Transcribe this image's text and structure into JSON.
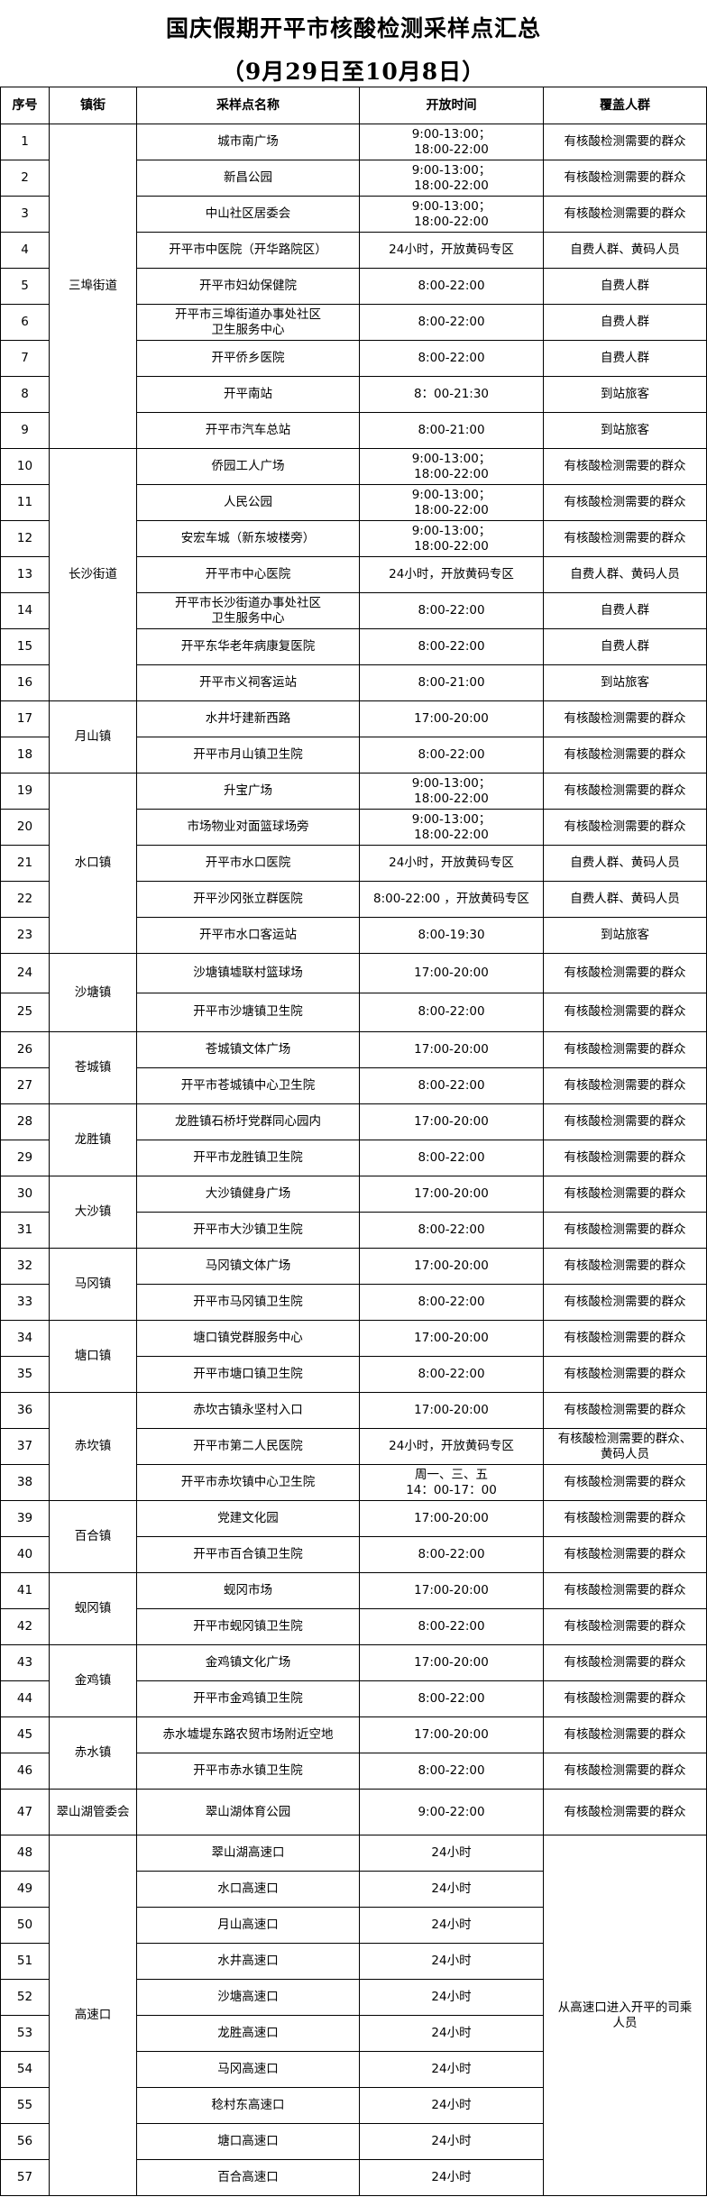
{
  "title": "国庆假期开平市核酸检测采样点汇总",
  "subtitle": "（9月29日至10月8日）",
  "headers": [
    "序号",
    "镇街",
    "采样点名称",
    "开放时间",
    "覆盖人群"
  ],
  "groups": [
    {
      "town": "三埠街道",
      "sites": [
        {
          "no": "1",
          "name": "城市南广场",
          "time": "9:00-13:00；\n18:00-22:00",
          "coverage": "有核酸检测需要的群众"
        },
        {
          "no": "2",
          "name": "新昌公园",
          "time": "9:00-13:00；\n18:00-22:00",
          "coverage": "有核酸检测需要的群众"
        },
        {
          "no": "3",
          "name": "中山社区居委会",
          "time": "9:00-13:00；\n18:00-22:00",
          "coverage": "有核酸检测需要的群众"
        },
        {
          "no": "4",
          "name": "开平市中医院（开华路院区）",
          "time": "24小时，开放黄码专区",
          "coverage": "自费人群、黄码人员"
        },
        {
          "no": "5",
          "name": "开平市妇幼保健院",
          "time": "8:00-22:00",
          "coverage": "自费人群"
        },
        {
          "no": "6",
          "name": "开平市三埠街道办事处社区\n卫生服务中心",
          "time": "8:00-22:00",
          "coverage": "自费人群"
        },
        {
          "no": "7",
          "name": "开平侨乡医院",
          "time": "8:00-22:00",
          "coverage": "自费人群"
        },
        {
          "no": "8",
          "name": "开平南站",
          "time": "8：00-21:30",
          "coverage": "到站旅客"
        },
        {
          "no": "9",
          "name": "开平市汽车总站",
          "time": "8:00-21:00",
          "coverage": "到站旅客"
        }
      ]
    },
    {
      "town": "长沙街道",
      "sites": [
        {
          "no": "10",
          "name": "侨园工人广场",
          "time": "9:00-13:00；\n18:00-22:00",
          "coverage": "有核酸检测需要的群众"
        },
        {
          "no": "11",
          "name": "人民公园",
          "time": "9:00-13:00；\n18:00-22:00",
          "coverage": "有核酸检测需要的群众"
        },
        {
          "no": "12",
          "name": "安宏车城（新东坡楼旁）",
          "time": "9:00-13:00；\n18:00-22:00",
          "coverage": "有核酸检测需要的群众"
        },
        {
          "no": "13",
          "name": "开平市中心医院",
          "time": "24小时，开放黄码专区",
          "coverage": "自费人群、黄码人员"
        },
        {
          "no": "14",
          "name": "开平市长沙街道办事处社区\n卫生服务中心",
          "time": "8:00-22:00",
          "coverage": "自费人群"
        },
        {
          "no": "15",
          "name": "开平东华老年病康复医院",
          "time": "8:00-22:00",
          "coverage": "自费人群"
        },
        {
          "no": "16",
          "name": "开平市义祠客运站",
          "time": "8:00-21:00",
          "coverage": "到站旅客"
        }
      ]
    },
    {
      "town": "月山镇",
      "sites": [
        {
          "no": "17",
          "name": "水井圩建新西路",
          "time": "17:00-20:00",
          "coverage": "有核酸检测需要的群众"
        },
        {
          "no": "18",
          "name": "开平市月山镇卫生院",
          "time": "8:00-22:00",
          "coverage": "有核酸检测需要的群众"
        }
      ]
    },
    {
      "town": "水口镇",
      "sites": [
        {
          "no": "19",
          "name": "升宝广场",
          "time": "9:00-13:00；\n18:00-22:00",
          "coverage": "有核酸检测需要的群众"
        },
        {
          "no": "20",
          "name": "市场物业对面篮球场旁",
          "time": "9:00-13:00；\n18:00-22:00",
          "coverage": "有核酸检测需要的群众"
        },
        {
          "no": "21",
          "name": "开平市水口医院",
          "time": "24小时，开放黄码专区",
          "coverage": "自费人群、黄码人员"
        },
        {
          "no": "22",
          "name": "开平沙冈张立群医院",
          "time": "8:00-22:00 ，开放黄码专区",
          "coverage": "自费人群、黄码人员"
        },
        {
          "no": "23",
          "name": "开平市水口客运站",
          "time": "8:00-19:30",
          "coverage": "到站旅客"
        }
      ]
    },
    {
      "town": "沙塘镇",
      "sites": [
        {
          "no": "24",
          "name": "沙塘镇墟联村篮球场",
          "time": "17:00-20:00",
          "coverage": "有核酸检测需要的群众"
        },
        {
          "no": "25",
          "name": "开平市沙塘镇卫生院",
          "time": "8:00-22:00",
          "coverage": "有核酸检测需要的群众"
        }
      ]
    },
    {
      "town": "苍城镇",
      "sites": [
        {
          "no": "26",
          "name": "苍城镇文体广场",
          "time": "17:00-20:00",
          "coverage": "有核酸检测需要的群众"
        },
        {
          "no": "27",
          "name": "开平市苍城镇中心卫生院",
          "time": "8:00-22:00",
          "coverage": "有核酸检测需要的群众"
        }
      ]
    },
    {
      "town": "龙胜镇",
      "sites": [
        {
          "no": "28",
          "name": "龙胜镇石桥圩党群同心园内",
          "time": "17:00-20:00",
          "coverage": "有核酸检测需要的群众"
        },
        {
          "no": "29",
          "name": "开平市龙胜镇卫生院",
          "time": "8:00-22:00",
          "coverage": "有核酸检测需要的群众"
        }
      ]
    },
    {
      "town": "大沙镇",
      "sites": [
        {
          "no": "30",
          "name": "大沙镇健身广场",
          "time": "17:00-20:00",
          "coverage": "有核酸检测需要的群众"
        },
        {
          "no": "31",
          "name": "开平市大沙镇卫生院",
          "time": "8:00-22:00",
          "coverage": "有核酸检测需要的群众"
        }
      ]
    },
    {
      "town": "马冈镇",
      "sites": [
        {
          "no": "32",
          "name": "马冈镇文体广场",
          "time": "17:00-20:00",
          "coverage": "有核酸检测需要的群众"
        },
        {
          "no": "33",
          "name": "开平市马冈镇卫生院",
          "time": "8:00-22:00",
          "coverage": "有核酸检测需要的群众"
        }
      ]
    },
    {
      "town": "塘口镇",
      "sites": [
        {
          "no": "34",
          "name": "塘口镇党群服务中心",
          "time": "17:00-20:00",
          "coverage": "有核酸检测需要的群众"
        },
        {
          "no": "35",
          "name": "开平市塘口镇卫生院",
          "time": "8:00-22:00",
          "coverage": "有核酸检测需要的群众"
        }
      ]
    },
    {
      "town": "赤坎镇",
      "sites": [
        {
          "no": "36",
          "name": "赤坎古镇永坚村入口",
          "time": "17:00-20:00",
          "coverage": "有核酸检测需要的群众"
        },
        {
          "no": "37",
          "name": "开平市第二人民医院",
          "time": "24小时，开放黄码专区",
          "coverage": "有核酸检测需要的群众、\n黄码人员"
        },
        {
          "no": "38",
          "name": "开平市赤坎镇中心卫生院",
          "time": "周一、三、五\n14：00-17：00",
          "coverage": "有核酸检测需要的群众"
        }
      ]
    },
    {
      "town": "百合镇",
      "sites": [
        {
          "no": "39",
          "name": "党建文化园",
          "time": "17:00-20:00",
          "coverage": "有核酸检测需要的群众"
        },
        {
          "no": "40",
          "name": "开平市百合镇卫生院",
          "time": "8:00-22:00",
          "coverage": "有核酸检测需要的群众"
        }
      ]
    },
    {
      "town": "蚬冈镇",
      "sites": [
        {
          "no": "41",
          "name": "蚬冈市场",
          "time": "17:00-20:00",
          "coverage": "有核酸检测需要的群众"
        },
        {
          "no": "42",
          "name": "开平市蚬冈镇卫生院",
          "time": "8:00-22:00",
          "coverage": "有核酸检测需要的群众"
        }
      ]
    },
    {
      "town": "金鸡镇",
      "sites": [
        {
          "no": "43",
          "name": "金鸡镇文化广场",
          "time": "17:00-20:00",
          "coverage": "有核酸检测需要的群众"
        },
        {
          "no": "44",
          "name": "开平市金鸡镇卫生院",
          "time": "8:00-22:00",
          "coverage": "有核酸检测需要的群众"
        }
      ]
    },
    {
      "town": "赤水镇",
      "sites": [
        {
          "no": "45",
          "name": "赤水墟堤东路农贸市场附近空地",
          "time": "17:00-20:00",
          "coverage": "有核酸检测需要的群众"
        },
        {
          "no": "46",
          "name": "开平市赤水镇卫生院",
          "time": "8:00-22:00",
          "coverage": "有核酸检测需要的群众"
        }
      ]
    },
    {
      "town": "翠山湖管委会",
      "sites": [
        {
          "no": "47",
          "name": "翠山湖体育公园",
          "time": "9:00-22:00",
          "coverage": "有核酸检测需要的群众"
        }
      ]
    },
    {
      "town": "高速口",
      "shared_coverage": "从高速口进入开平的司乘\n人员",
      "sites": [
        {
          "no": "48",
          "name": "翠山湖高速口",
          "time": "24小时"
        },
        {
          "no": "49",
          "name": "水口高速口",
          "time": "24小时"
        },
        {
          "no": "50",
          "name": "月山高速口",
          "time": "24小时"
        },
        {
          "no": "51",
          "name": "水井高速口",
          "time": "24小时"
        },
        {
          "no": "52",
          "name": "沙塘高速口",
          "time": "24小时"
        },
        {
          "no": "53",
          "name": "龙胜高速口",
          "time": "24小时"
        },
        {
          "no": "54",
          "name": "马冈高速口",
          "time": "24小时"
        },
        {
          "no": "55",
          "name": "稔村东高速口",
          "time": "24小时"
        },
        {
          "no": "56",
          "name": "塘口高速口",
          "time": "24小时"
        },
        {
          "no": "57",
          "name": "百合高速口",
          "time": "24小时"
        }
      ]
    }
  ]
}
